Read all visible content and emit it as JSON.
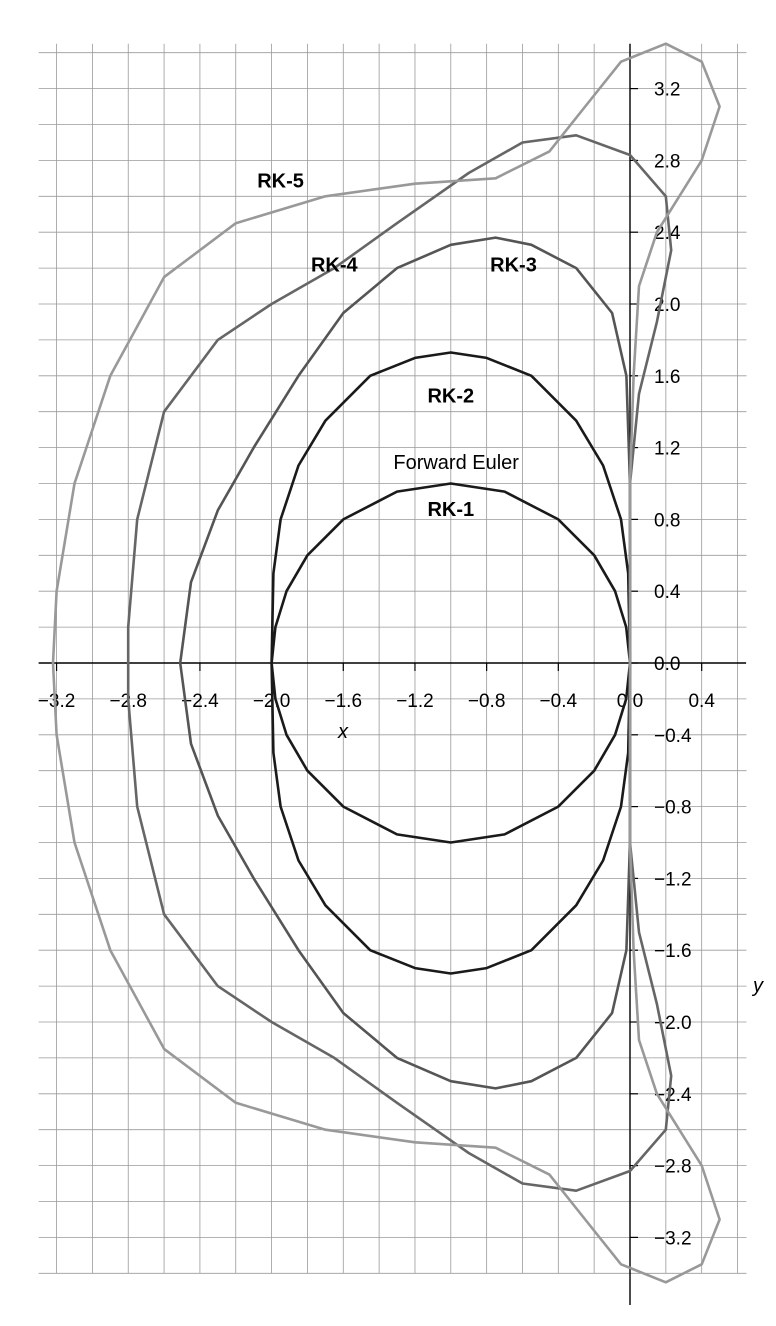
{
  "chart_data": {
    "type": "line",
    "title": "",
    "xlabel": "x",
    "ylabel": "y",
    "xlim": [
      -3.3,
      0.65
    ],
    "ylim": [
      -3.4,
      3.45
    ],
    "grid": true,
    "grid_step": 0.2,
    "x_ticks": [
      -3.2,
      -2.8,
      -2.4,
      -2.0,
      -1.6,
      -1.2,
      -0.8,
      -0.4,
      0.0,
      0.4
    ],
    "x_tick_labels": [
      "−3.2",
      "−2.8",
      "−2.4",
      "−2.0",
      "−1.6",
      "−1.2",
      "−0.8",
      "−0.4",
      "0.0",
      "0.4"
    ],
    "y_ticks": [
      3.2,
      2.8,
      2.4,
      2.0,
      1.6,
      1.2,
      0.8,
      0.4,
      0.0,
      -0.4,
      -0.8,
      -1.2,
      -1.6,
      -2.0,
      -2.4,
      -2.8,
      -3.2
    ],
    "y_tick_labels": [
      "3.2",
      "2.8",
      "2.4",
      "2.0",
      "1.6",
      "1.2",
      "0.8",
      "0.4",
      "0.0",
      "−0.4",
      "−0.8",
      "−1.2",
      "−1.6",
      "−2.0",
      "−2.4",
      "−2.8",
      "−3.2"
    ],
    "series": [
      {
        "name": "RK-1",
        "color": "#1a1a1a",
        "points": [
          [
            0.0,
            0.0
          ],
          [
            -0.021,
            0.2
          ],
          [
            -0.083,
            0.4
          ],
          [
            -0.2,
            0.6
          ],
          [
            -0.4,
            0.8
          ],
          [
            -0.7,
            0.955
          ],
          [
            -1.0,
            1.0
          ],
          [
            -1.3,
            0.955
          ],
          [
            -1.6,
            0.8
          ],
          [
            -1.8,
            0.6
          ],
          [
            -1.917,
            0.4
          ],
          [
            -1.979,
            0.2
          ],
          [
            -2.0,
            0.0
          ],
          [
            -1.979,
            -0.2
          ],
          [
            -1.917,
            -0.4
          ],
          [
            -1.8,
            -0.6
          ],
          [
            -1.6,
            -0.8
          ],
          [
            -1.3,
            -0.955
          ],
          [
            -1.0,
            -1.0
          ],
          [
            -0.7,
            -0.955
          ],
          [
            -0.4,
            -0.8
          ],
          [
            -0.2,
            -0.6
          ],
          [
            -0.083,
            -0.4
          ],
          [
            -0.021,
            -0.2
          ],
          [
            0.0,
            0.0
          ]
        ]
      },
      {
        "name": "RK-2",
        "color": "#1a1a1a",
        "points": [
          [
            0.0,
            0.0
          ],
          [
            -0.01,
            0.5
          ],
          [
            -0.05,
            0.8
          ],
          [
            -0.15,
            1.1
          ],
          [
            -0.3,
            1.35
          ],
          [
            -0.55,
            1.6
          ],
          [
            -0.8,
            1.7
          ],
          [
            -1.0,
            1.73
          ],
          [
            -1.2,
            1.7
          ],
          [
            -1.45,
            1.6
          ],
          [
            -1.7,
            1.35
          ],
          [
            -1.85,
            1.1
          ],
          [
            -1.95,
            0.8
          ],
          [
            -1.99,
            0.5
          ],
          [
            -2.0,
            0.0
          ],
          [
            -1.99,
            -0.5
          ],
          [
            -1.95,
            -0.8
          ],
          [
            -1.85,
            -1.1
          ],
          [
            -1.7,
            -1.35
          ],
          [
            -1.45,
            -1.6
          ],
          [
            -1.2,
            -1.7
          ],
          [
            -1.0,
            -1.73
          ],
          [
            -0.8,
            -1.7
          ],
          [
            -0.55,
            -1.6
          ],
          [
            -0.3,
            -1.35
          ],
          [
            -0.15,
            -1.1
          ],
          [
            -0.05,
            -0.8
          ],
          [
            -0.01,
            -0.5
          ],
          [
            0.0,
            0.0
          ]
        ]
      },
      {
        "name": "RK-3",
        "color": "#555555",
        "points": [
          [
            0.0,
            0.0
          ],
          [
            0.0,
            1.0
          ],
          [
            -0.02,
            1.6
          ],
          [
            -0.1,
            1.95
          ],
          [
            -0.3,
            2.2
          ],
          [
            -0.55,
            2.33
          ],
          [
            -0.75,
            2.37
          ],
          [
            -1.0,
            2.33
          ],
          [
            -1.3,
            2.2
          ],
          [
            -1.6,
            1.95
          ],
          [
            -1.85,
            1.6
          ],
          [
            -2.1,
            1.2
          ],
          [
            -2.3,
            0.85
          ],
          [
            -2.45,
            0.45
          ],
          [
            -2.51,
            0.0
          ],
          [
            -2.45,
            -0.45
          ],
          [
            -2.3,
            -0.85
          ],
          [
            -2.1,
            -1.2
          ],
          [
            -1.85,
            -1.6
          ],
          [
            -1.6,
            -1.95
          ],
          [
            -1.3,
            -2.2
          ],
          [
            -1.0,
            -2.33
          ],
          [
            -0.75,
            -2.37
          ],
          [
            -0.55,
            -2.33
          ],
          [
            -0.3,
            -2.2
          ],
          [
            -0.1,
            -1.95
          ],
          [
            -0.02,
            -1.6
          ],
          [
            0.0,
            -1.0
          ],
          [
            0.0,
            0.0
          ]
        ]
      },
      {
        "name": "RK-4",
        "color": "#666666",
        "points": [
          [
            0.0,
            0.0
          ],
          [
            0.0,
            1.0
          ],
          [
            0.05,
            1.5
          ],
          [
            0.15,
            1.9
          ],
          [
            0.23,
            2.3
          ],
          [
            0.2,
            2.6
          ],
          [
            0.0,
            2.83
          ],
          [
            -0.3,
            2.94
          ],
          [
            -0.6,
            2.9
          ],
          [
            -0.9,
            2.73
          ],
          [
            -1.3,
            2.45
          ],
          [
            -1.65,
            2.2
          ],
          [
            -2.0,
            2.0
          ],
          [
            -2.3,
            1.8
          ],
          [
            -2.6,
            1.4
          ],
          [
            -2.75,
            0.8
          ],
          [
            -2.8,
            0.2
          ],
          [
            -2.8,
            -0.2
          ],
          [
            -2.75,
            -0.8
          ],
          [
            -2.6,
            -1.4
          ],
          [
            -2.3,
            -1.8
          ],
          [
            -2.0,
            -2.0
          ],
          [
            -1.65,
            -2.2
          ],
          [
            -1.3,
            -2.45
          ],
          [
            -0.9,
            -2.73
          ],
          [
            -0.6,
            -2.9
          ],
          [
            -0.3,
            -2.94
          ],
          [
            0.0,
            -2.83
          ],
          [
            0.2,
            -2.6
          ],
          [
            0.23,
            -2.3
          ],
          [
            0.15,
            -1.9
          ],
          [
            0.05,
            -1.5
          ],
          [
            0.0,
            -1.0
          ],
          [
            0.0,
            0.0
          ]
        ]
      },
      {
        "name": "RK-5",
        "color": "#999999",
        "points": [
          [
            0.0,
            0.0
          ],
          [
            0.0,
            1.0
          ],
          [
            0.02,
            1.6
          ],
          [
            0.05,
            2.1
          ],
          [
            0.15,
            2.4
          ],
          [
            0.4,
            2.8
          ],
          [
            0.5,
            3.1
          ],
          [
            0.4,
            3.35
          ],
          [
            0.2,
            3.45
          ],
          [
            -0.05,
            3.35
          ],
          [
            -0.25,
            3.1
          ],
          [
            -0.45,
            2.85
          ],
          [
            -0.75,
            2.7
          ],
          [
            -1.2,
            2.67
          ],
          [
            -1.7,
            2.6
          ],
          [
            -2.2,
            2.45
          ],
          [
            -2.6,
            2.15
          ],
          [
            -2.9,
            1.6
          ],
          [
            -3.1,
            1.0
          ],
          [
            -3.2,
            0.4
          ],
          [
            -3.22,
            0.0
          ],
          [
            -3.2,
            -0.4
          ],
          [
            -3.1,
            -1.0
          ],
          [
            -2.9,
            -1.6
          ],
          [
            -2.6,
            -2.15
          ],
          [
            -2.2,
            -2.45
          ],
          [
            -1.7,
            -2.6
          ],
          [
            -1.2,
            -2.67
          ],
          [
            -0.75,
            -2.7
          ],
          [
            -0.45,
            -2.85
          ],
          [
            -0.25,
            -3.1
          ],
          [
            -0.05,
            -3.35
          ],
          [
            0.2,
            -3.45
          ],
          [
            0.4,
            -3.35
          ],
          [
            0.5,
            -3.1
          ],
          [
            0.4,
            -2.8
          ],
          [
            0.15,
            -2.4
          ],
          [
            0.05,
            -2.1
          ],
          [
            0.02,
            -1.6
          ],
          [
            0.0,
            -1.0
          ],
          [
            0.0,
            0.0
          ]
        ]
      }
    ],
    "annotations": [
      {
        "text": "RK-5",
        "x": -1.95,
        "y": 2.65,
        "style": "bold"
      },
      {
        "text": "RK-4",
        "x": -1.65,
        "y": 2.18,
        "style": "bold"
      },
      {
        "text": "RK-3",
        "x": -0.65,
        "y": 2.18,
        "style": "bold"
      },
      {
        "text": "RK-2",
        "x": -1.0,
        "y": 1.45,
        "style": "bold"
      },
      {
        "text": "Forward Euler",
        "x": -0.97,
        "y": 1.08,
        "style": "plain"
      },
      {
        "text": "RK-1",
        "x": -1.0,
        "y": 0.82,
        "style": "bold"
      }
    ]
  }
}
